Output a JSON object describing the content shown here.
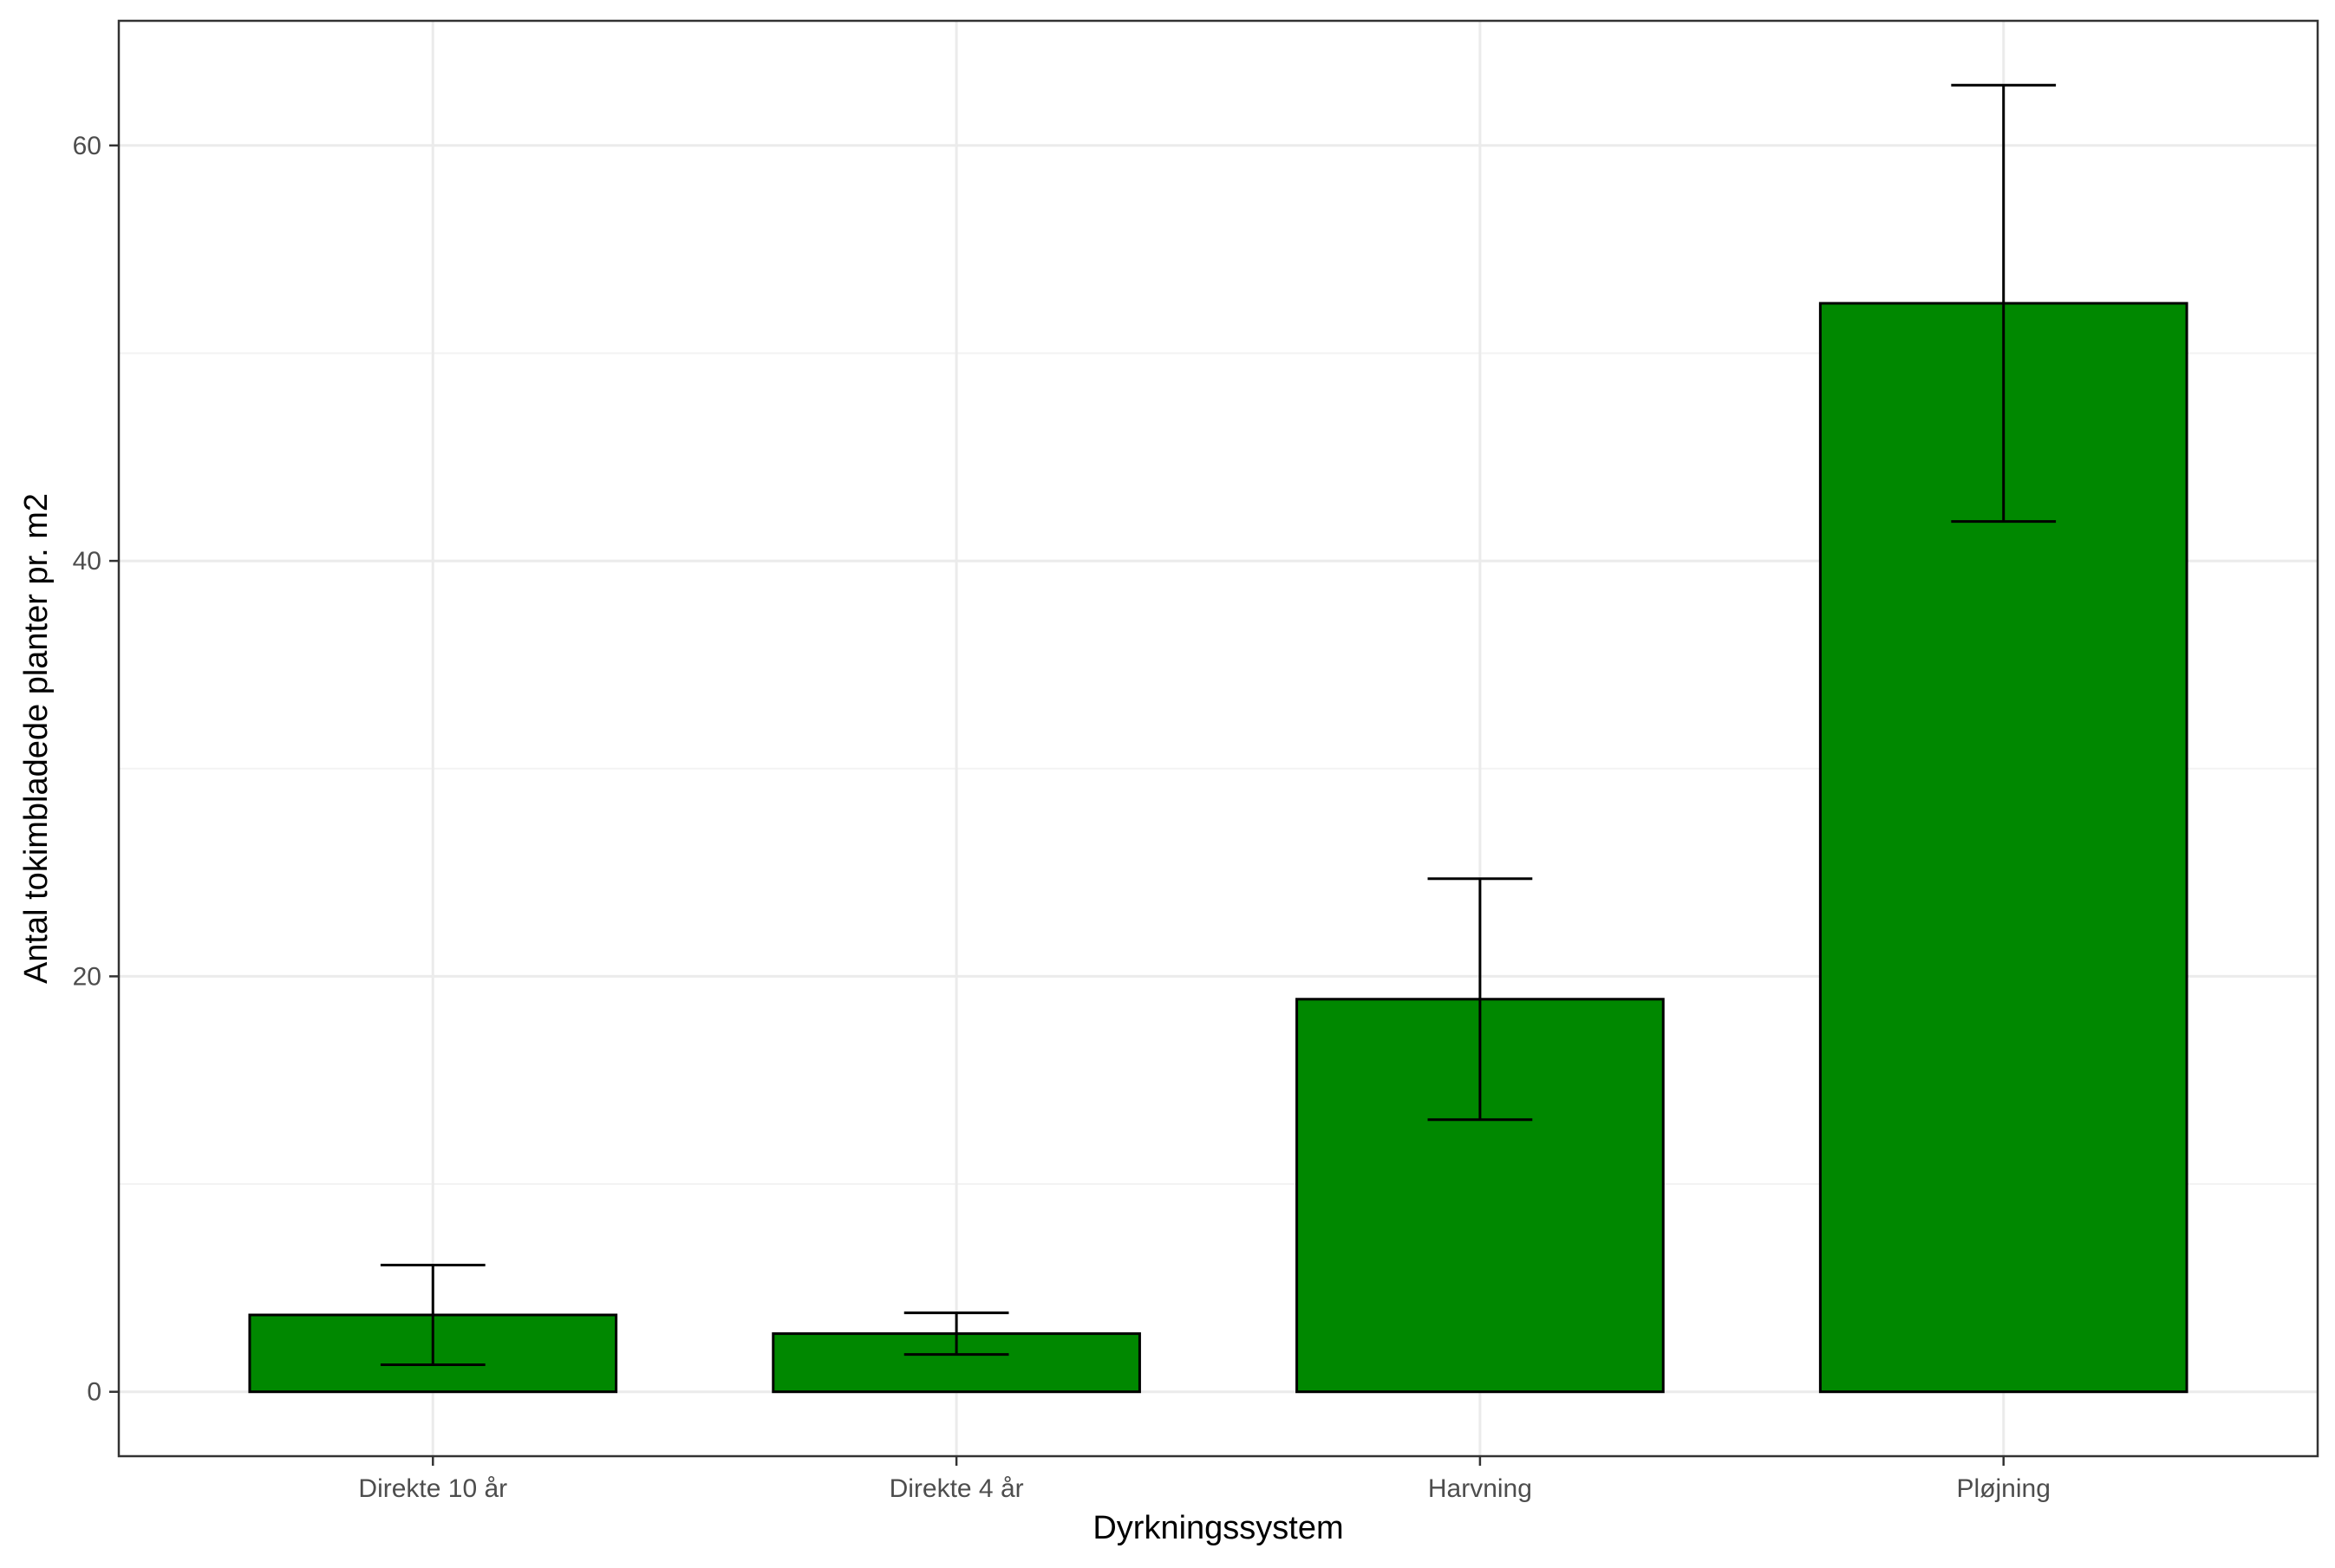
{
  "colors": {
    "bar_fill": "#008800",
    "bar_stroke": "#000000",
    "grid_major": "#ebebeb",
    "grid_minor": "#f3f3f3",
    "panel_border": "#333333",
    "error_bar": "#000000"
  },
  "chart_data": {
    "type": "bar",
    "title": "",
    "xlabel": "Dyrkningssystem",
    "ylabel": "Antal tokimbladede planter pr. m2",
    "categories": [
      "Direkte 10 år",
      "Direkte 4 år",
      "Harvning",
      "Pløjning"
    ],
    "values": [
      3.7,
      2.8,
      18.9,
      52.4
    ],
    "error_low": [
      1.3,
      1.8,
      13.1,
      41.9
    ],
    "error_high": [
      6.1,
      3.8,
      24.7,
      62.9
    ],
    "ylim": [
      -3.1,
      66.0
    ],
    "yticks": [
      0,
      20,
      40,
      60
    ],
    "grid": true,
    "legend": "none"
  }
}
